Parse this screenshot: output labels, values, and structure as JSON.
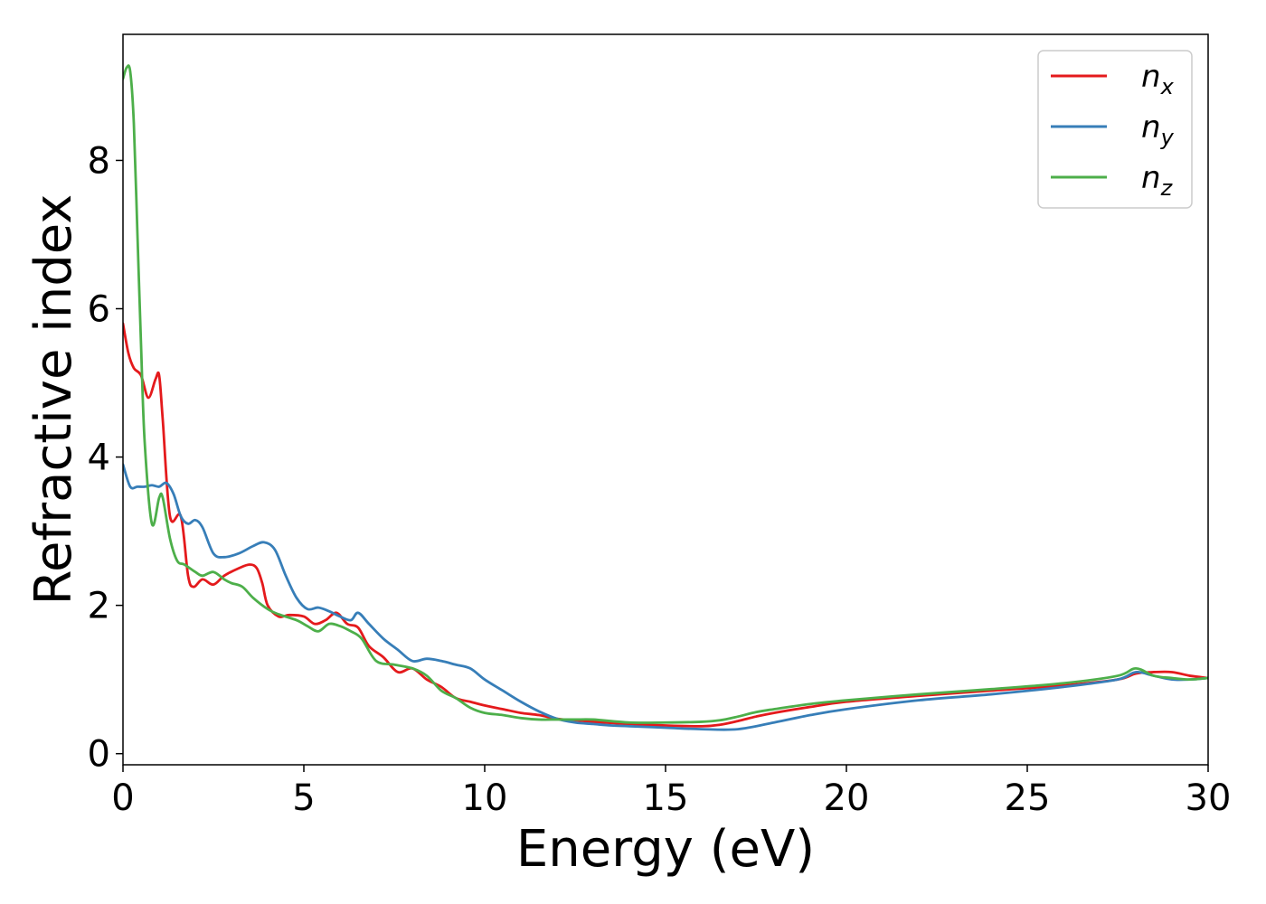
{
  "chart_data": {
    "type": "line",
    "title": "",
    "xlabel": "Energy (eV)",
    "ylabel": "Refractive index",
    "xlim": [
      0,
      30
    ],
    "ylim": [
      -0.15,
      9.7
    ],
    "xticks": [
      0,
      5,
      10,
      15,
      20,
      25,
      30
    ],
    "yticks": [
      0,
      2,
      4,
      6,
      8
    ],
    "grid": false,
    "legend_position": "top-right",
    "series": [
      {
        "name": "n_x",
        "label_base": "n",
        "label_sub": "x",
        "color": "#e41a1c",
        "x": [
          0,
          0.15,
          0.3,
          0.5,
          0.7,
          0.9,
          1.0,
          1.1,
          1.3,
          1.6,
          1.8,
          1.95,
          2.2,
          2.5,
          2.8,
          3.2,
          3.5,
          3.7,
          3.85,
          4.0,
          4.3,
          4.6,
          5.0,
          5.3,
          5.6,
          5.9,
          6.2,
          6.5,
          6.8,
          7.2,
          7.6,
          8.0,
          8.4,
          8.8,
          9.2,
          9.6,
          10.0,
          10.5,
          11.0,
          11.5,
          12.0,
          12.5,
          13.0,
          14.0,
          15.0,
          16.0,
          16.5,
          17.0,
          17.5,
          18.0,
          19.0,
          20.0,
          22.0,
          24.0,
          26.0,
          27.5,
          28.0,
          28.5,
          29.0,
          29.5,
          30.0
        ],
        "y": [
          5.8,
          5.4,
          5.2,
          5.1,
          4.8,
          5.05,
          5.1,
          4.5,
          3.2,
          3.2,
          2.4,
          2.25,
          2.35,
          2.28,
          2.4,
          2.5,
          2.55,
          2.5,
          2.3,
          2.0,
          1.85,
          1.87,
          1.85,
          1.75,
          1.8,
          1.9,
          1.75,
          1.7,
          1.45,
          1.3,
          1.1,
          1.15,
          1.0,
          0.9,
          0.75,
          0.7,
          0.65,
          0.6,
          0.55,
          0.52,
          0.47,
          0.45,
          0.43,
          0.4,
          0.38,
          0.37,
          0.39,
          0.44,
          0.5,
          0.55,
          0.63,
          0.7,
          0.78,
          0.85,
          0.92,
          1.0,
          1.08,
          1.1,
          1.1,
          1.05,
          1.02
        ]
      },
      {
        "name": "n_y",
        "label_base": "n",
        "label_sub": "y",
        "color": "#377eb8",
        "x": [
          0,
          0.2,
          0.4,
          0.6,
          0.8,
          1.0,
          1.2,
          1.4,
          1.6,
          1.8,
          2.0,
          2.2,
          2.5,
          2.8,
          3.2,
          3.6,
          3.9,
          4.2,
          4.5,
          4.8,
          5.1,
          5.4,
          5.7,
          6.0,
          6.3,
          6.5,
          6.8,
          7.2,
          7.6,
          8.0,
          8.4,
          8.8,
          9.2,
          9.6,
          10.0,
          10.5,
          11.0,
          11.5,
          12.0,
          12.5,
          13.0,
          13.5,
          14.0,
          15.0,
          16.0,
          17.0,
          18.0,
          19.0,
          20.0,
          22.0,
          24.0,
          26.0,
          27.5,
          28.0,
          28.5,
          29.0,
          29.5,
          30.0
        ],
        "y": [
          3.9,
          3.6,
          3.6,
          3.6,
          3.62,
          3.6,
          3.65,
          3.5,
          3.2,
          3.1,
          3.15,
          3.05,
          2.7,
          2.65,
          2.7,
          2.8,
          2.85,
          2.75,
          2.4,
          2.1,
          1.95,
          1.97,
          1.92,
          1.85,
          1.8,
          1.9,
          1.75,
          1.55,
          1.4,
          1.25,
          1.28,
          1.25,
          1.2,
          1.15,
          1.0,
          0.85,
          0.7,
          0.57,
          0.47,
          0.42,
          0.4,
          0.38,
          0.37,
          0.35,
          0.33,
          0.33,
          0.42,
          0.52,
          0.6,
          0.72,
          0.8,
          0.9,
          1.0,
          1.1,
          1.05,
          1.0,
          1.0,
          1.02
        ]
      },
      {
        "name": "n_z",
        "label_base": "n",
        "label_sub": "z",
        "color": "#4daf4a",
        "x": [
          0,
          0.1,
          0.2,
          0.3,
          0.4,
          0.5,
          0.6,
          0.8,
          1.0,
          1.1,
          1.3,
          1.5,
          1.7,
          2.0,
          2.2,
          2.5,
          2.8,
          3.0,
          3.3,
          3.6,
          4.0,
          4.3,
          4.8,
          5.1,
          5.4,
          5.7,
          6.0,
          6.3,
          6.6,
          7.0,
          7.5,
          8.0,
          8.4,
          8.8,
          9.2,
          9.6,
          10.0,
          10.5,
          11.0,
          11.5,
          12.0,
          12.5,
          13.0,
          14.0,
          15.0,
          16.0,
          16.5,
          17.0,
          17.5,
          18.0,
          19.0,
          20.0,
          22.0,
          24.0,
          26.0,
          27.5,
          28.0,
          28.5,
          29.0,
          29.5,
          30.0
        ],
        "y": [
          9.1,
          9.25,
          9.2,
          8.5,
          7.0,
          5.5,
          4.2,
          3.1,
          3.45,
          3.45,
          2.9,
          2.6,
          2.55,
          2.45,
          2.4,
          2.45,
          2.35,
          2.3,
          2.25,
          2.1,
          1.95,
          1.88,
          1.8,
          1.72,
          1.65,
          1.75,
          1.72,
          1.65,
          1.55,
          1.25,
          1.2,
          1.15,
          1.05,
          0.85,
          0.75,
          0.62,
          0.55,
          0.52,
          0.48,
          0.46,
          0.46,
          0.46,
          0.46,
          0.42,
          0.42,
          0.43,
          0.45,
          0.5,
          0.56,
          0.6,
          0.67,
          0.72,
          0.8,
          0.87,
          0.95,
          1.05,
          1.15,
          1.05,
          1.02,
          1.0,
          1.02
        ]
      }
    ]
  }
}
